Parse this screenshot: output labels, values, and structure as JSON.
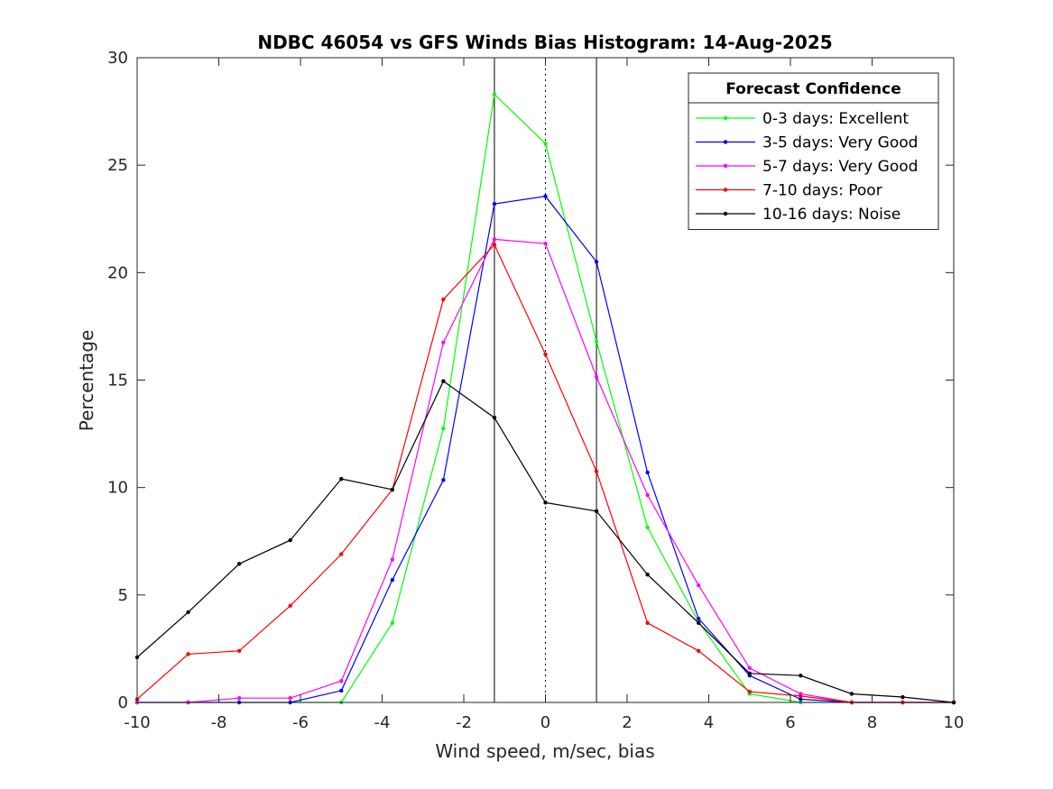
{
  "chart_data": {
    "type": "line",
    "title": "NDBC 46054 vs GFS Winds Bias Histogram: 14-Aug-2025",
    "xlabel": "Wind speed, m/sec, bias",
    "ylabel": "Percentage",
    "xlim": [
      -10,
      10
    ],
    "ylim": [
      0,
      30
    ],
    "xticks": [
      -10,
      -8,
      -6,
      -4,
      -2,
      0,
      2,
      4,
      6,
      8,
      10
    ],
    "yticks": [
      0,
      5,
      10,
      15,
      20,
      25,
      30
    ],
    "x": [
      -10,
      -8.75,
      -7.5,
      -6.25,
      -5,
      -3.75,
      -2.5,
      -1.25,
      0,
      1.25,
      2.5,
      3.75,
      5,
      6.25,
      7.5,
      8.75,
      10
    ],
    "vlines_solid": [
      -1.25,
      1.25
    ],
    "vline_dotted": 0,
    "grid": false,
    "legend": {
      "title": "Forecast Confidence",
      "placement": "top-right"
    },
    "series": [
      {
        "name": "0-3 days: Excellent",
        "color": "#00ff00",
        "values": [
          0,
          0,
          0,
          0,
          0,
          3.7,
          12.75,
          28.3,
          26.0,
          16.8,
          8.15,
          3.75,
          0.4,
          0,
          0,
          0,
          0
        ]
      },
      {
        "name": "3-5 days: Very Good",
        "color": "#0000ff",
        "values": [
          0,
          0,
          0,
          0,
          0.55,
          5.7,
          10.35,
          23.2,
          23.55,
          20.5,
          10.7,
          3.9,
          1.25,
          0.15,
          0,
          0,
          0
        ]
      },
      {
        "name": "5-7 days: Very Good",
        "color": "#ff00ff",
        "values": [
          0,
          0,
          0.2,
          0.2,
          1.0,
          6.65,
          16.75,
          21.55,
          21.35,
          15.15,
          9.65,
          5.45,
          1.6,
          0.4,
          0,
          0,
          0
        ]
      },
      {
        "name": "7-10 days: Poor",
        "color": "#ff0000",
        "values": [
          0.15,
          2.25,
          2.4,
          4.5,
          6.9,
          9.9,
          18.75,
          21.3,
          16.2,
          10.75,
          3.7,
          2.4,
          0.5,
          0.3,
          0,
          0,
          0
        ]
      },
      {
        "name": "10-16 days: Noise",
        "color": "#000000",
        "values": [
          2.1,
          4.2,
          6.45,
          7.55,
          10.4,
          9.9,
          14.95,
          13.25,
          9.3,
          8.9,
          5.95,
          3.7,
          1.35,
          1.25,
          0.4,
          0.25,
          0
        ]
      }
    ]
  }
}
